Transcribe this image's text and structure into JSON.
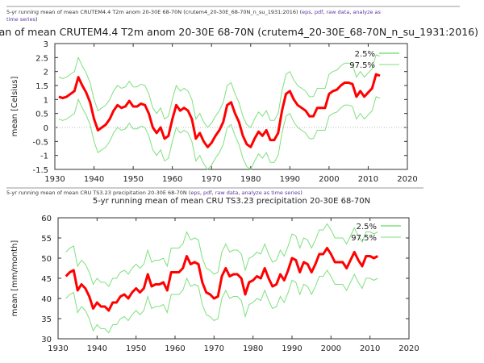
{
  "caption1": {
    "text": "5-yr running mean of mean CRUTEM4.4 T2m anom 20-30E 68-70N (crutem4_20-30E_68-70N_n_su_1931:2016)",
    "links": [
      "eps",
      "pdf",
      "raw data",
      "analyze as time series"
    ]
  },
  "caption2": {
    "text": "5-yr running mean of mean CRU TS3.23 precipitation 20-30E 68-70N",
    "links": [
      "eps",
      "pdf",
      "raw data",
      "analyze as time series"
    ]
  },
  "colors": {
    "mean": "#ff0000",
    "bounds": "#7ee07e"
  },
  "chart_data": [
    {
      "type": "line",
      "title": "5-yr running mean of mean CRUTEM4.4 T2m anom 20-30E 68-70N (crutem4_20-30E_68-70N_n_su_1931:2016)",
      "xlabel": "",
      "ylabel": "mean [Celsius]",
      "xlim": [
        1930,
        2020
      ],
      "ylim": [
        -1.5,
        3
      ],
      "xticks": [
        "1930",
        "1940",
        "1950",
        "1960",
        "1970",
        "1980",
        "1990",
        "2000",
        "2010",
        "2020"
      ],
      "yticks": [
        "-1.5",
        "-1",
        "-0.5",
        "0",
        "0.5",
        "1",
        "1.5",
        "2",
        "2.5",
        "3"
      ],
      "legend": [
        "2.5%",
        "97.5%"
      ],
      "legend_position": "top-right",
      "zero_line": true,
      "x_start": 1931,
      "mean": [
        1.1,
        1.05,
        1.1,
        1.2,
        1.3,
        1.8,
        1.5,
        1.25,
        0.9,
        0.3,
        -0.1,
        0.0,
        0.1,
        0.3,
        0.6,
        0.8,
        0.7,
        0.75,
        0.95,
        0.75,
        0.75,
        0.85,
        0.8,
        0.5,
        0.0,
        -0.2,
        0.0,
        -0.4,
        -0.3,
        0.3,
        0.8,
        0.6,
        0.7,
        0.6,
        0.3,
        -0.4,
        -0.2,
        -0.5,
        -0.7,
        -0.55,
        -0.3,
        -0.1,
        0.2,
        0.8,
        0.9,
        0.5,
        0.2,
        -0.3,
        -0.6,
        -0.7,
        -0.4,
        -0.15,
        -0.3,
        -0.1,
        -0.45,
        -0.45,
        -0.2,
        0.6,
        1.2,
        1.3,
        1.0,
        0.8,
        0.7,
        0.6,
        0.4,
        0.4,
        0.7,
        0.7,
        0.7,
        1.2,
        1.3,
        1.35,
        1.5,
        1.6,
        1.6,
        1.55,
        1.1,
        1.3,
        1.1,
        1.25,
        1.4,
        1.9,
        1.85
      ],
      "upper_offset": 0.7,
      "lower_offset": -0.8
    },
    {
      "type": "line",
      "title": "5-yr running mean of mean CRU TS3.23 precipitation 20-30E 68-70N",
      "xlabel": "",
      "ylabel": "mean [mm/month]",
      "xlim": [
        1930,
        2020
      ],
      "ylim": [
        30,
        60
      ],
      "xticks": [
        "1930",
        "1940",
        "1950",
        "1960",
        "1970",
        "1980",
        "1990",
        "2000",
        "2010",
        "2020"
      ],
      "yticks": [
        "30",
        "35",
        "40",
        "45",
        "50",
        "55",
        "60"
      ],
      "legend": [
        "2.5%",
        "97.5%"
      ],
      "legend_position": "top-right",
      "zero_line": false,
      "x_start": 1932,
      "mean": [
        45.5,
        46.5,
        47,
        42,
        43.5,
        42.5,
        40.5,
        37.5,
        39,
        38,
        38,
        37,
        39,
        39,
        40.5,
        41,
        40,
        41.5,
        42.5,
        41.5,
        42.5,
        46,
        43,
        43.5,
        43.5,
        44,
        42,
        46.5,
        46.5,
        46.5,
        47.5,
        50.5,
        48.5,
        49,
        48.5,
        44,
        41.5,
        41,
        40,
        40.5,
        45.5,
        47.5,
        45.5,
        46,
        46,
        45,
        41,
        44,
        44.5,
        45.5,
        45,
        47.5,
        45,
        43,
        43.5,
        46,
        44.5,
        47,
        50,
        49.5,
        46.5,
        49,
        48.5,
        46.5,
        48.5,
        51,
        51,
        52.5,
        51,
        49,
        49,
        49,
        47.5,
        49.5,
        51.5,
        49.5,
        48,
        50.5,
        50.5,
        50,
        50.5
      ],
      "upper_offset": 6,
      "lower_offset": -5.5
    }
  ]
}
